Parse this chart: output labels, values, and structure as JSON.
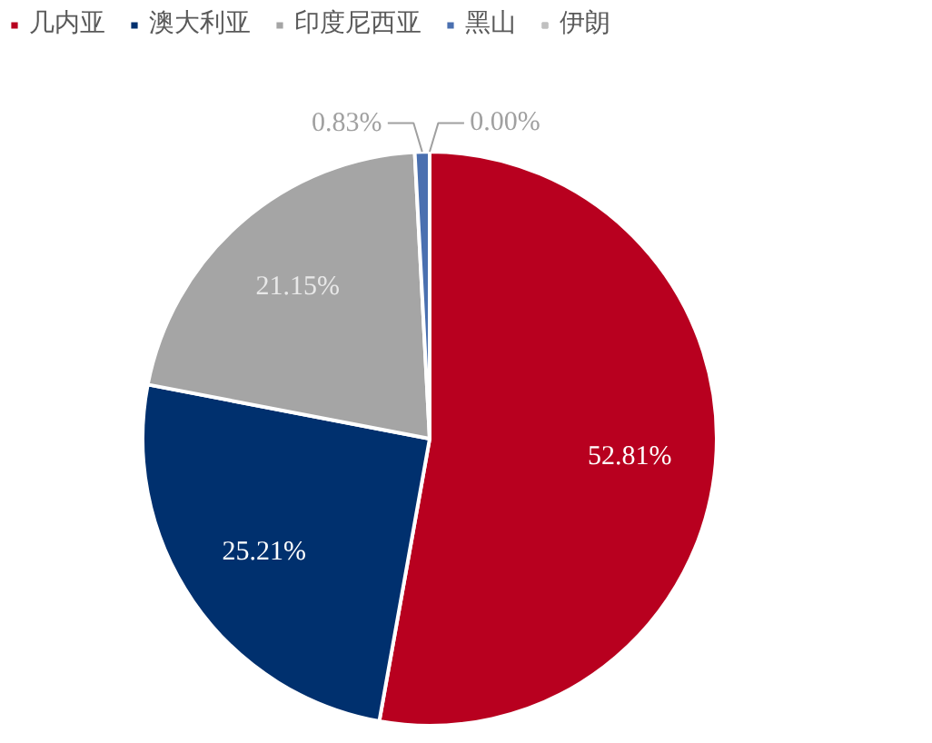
{
  "chart_data": {
    "type": "pie",
    "categories": [
      "几内亚",
      "澳大利亚",
      "印度尼西亚",
      "黑山",
      "伊朗"
    ],
    "values": [
      52.81,
      25.21,
      21.15,
      0.83,
      0.0
    ],
    "colors": [
      "#b8001f",
      "#00306e",
      "#a5a5a5",
      "#4a70b0",
      "#c0c0c0"
    ],
    "value_labels": [
      "52.81%",
      "25.21%",
      "21.15%",
      "0.83%",
      "0.00%"
    ],
    "legend": "top"
  }
}
